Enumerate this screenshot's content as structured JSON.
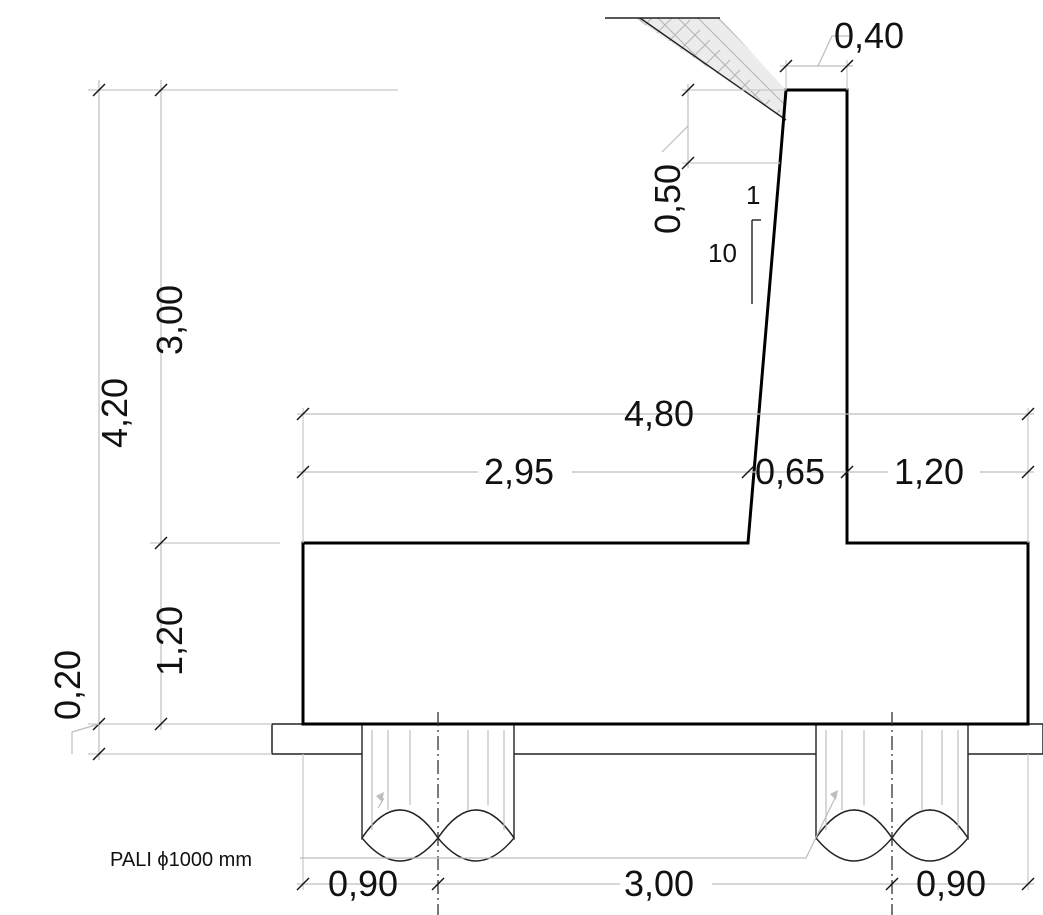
{
  "drawing": {
    "piles_label": "PALI ϕ1000 mm",
    "slope_rise": "1",
    "slope_run": "10",
    "pile_count": 2,
    "dimensions": {
      "total_height": "4,20",
      "stem_height": "3,00",
      "base_thickness": "1,20",
      "lean_layer": "0,20",
      "top_width": "0,40",
      "top_offset": "0,50",
      "base_length": "4,80",
      "heel_length": "2,95",
      "stem_base_width": "0,65",
      "toe_length": "1,20",
      "pile_edge_left": "0,90",
      "pile_spacing": "3,00",
      "pile_edge_right": "0,90"
    }
  }
}
